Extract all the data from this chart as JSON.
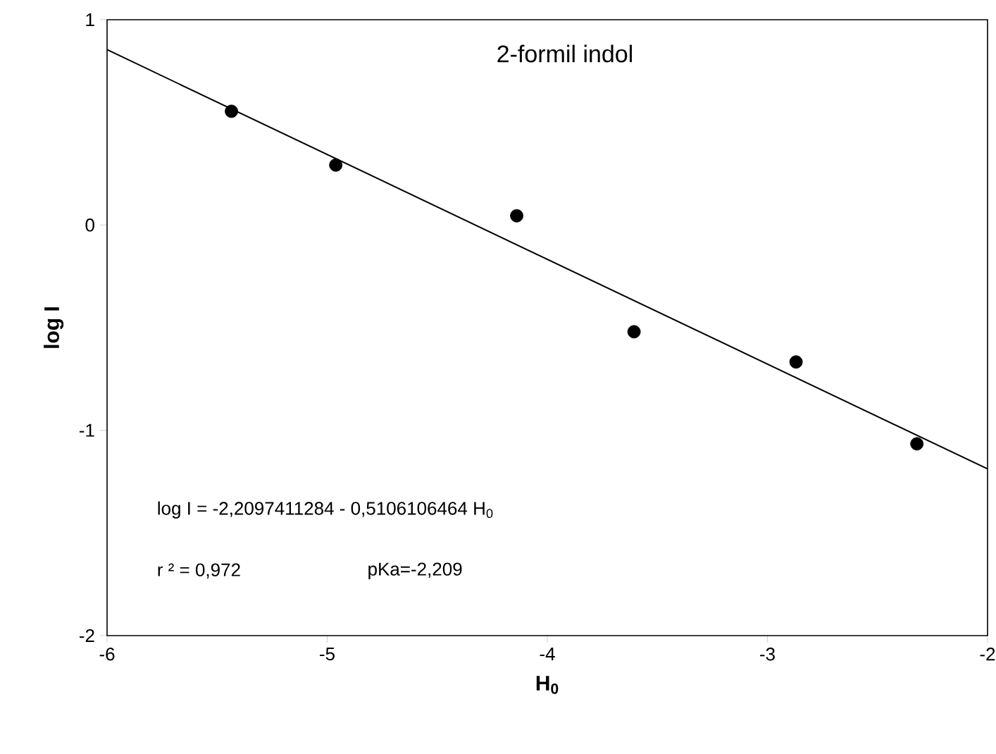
{
  "chart_data": {
    "type": "scatter",
    "title": "2-formil indol",
    "xlabel": "H$_{0}$",
    "ylabel": "log I",
    "series": [
      {
        "color": "#000000",
        "marker": "circle",
        "x": [
          -5.435,
          -4.961,
          -4.139,
          -3.606,
          -2.87,
          -2.321
        ],
        "values": [
          0.554,
          0.292,
          0.045,
          -0.52,
          -0.667,
          -1.066
        ]
      },
      {
        "type": "line",
        "color": "#000000",
        "marker": "none",
        "line_style": "solid",
        "x": [
          -6,
          -2
        ],
        "values": [
          0.854,
          -1.188
        ]
      }
    ],
    "xlim": [
      -6,
      -2
    ],
    "ylim": [
      -2,
      1
    ],
    "xticks": [
      -6,
      -5,
      -4,
      -3,
      -2
    ],
    "yticks": [
      -2,
      -1,
      0,
      1
    ],
    "annotations": [
      "log I  = -2,2097411284 - 0,5106106464 H$_{0}$",
      "r ² = 0,972",
      "pKa=-2,209"
    ],
    "grid": false
  }
}
